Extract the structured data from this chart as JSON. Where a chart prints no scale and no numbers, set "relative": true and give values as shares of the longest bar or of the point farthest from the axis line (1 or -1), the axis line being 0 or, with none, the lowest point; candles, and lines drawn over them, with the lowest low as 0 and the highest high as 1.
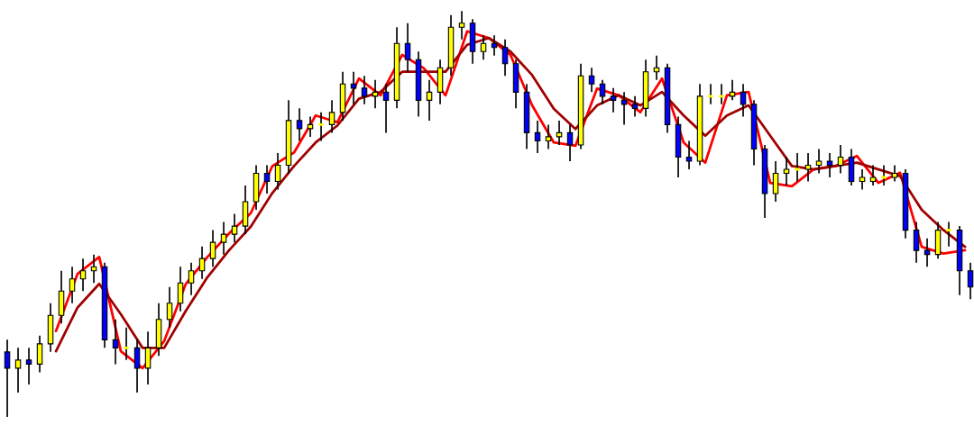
{
  "chart_data": [
    {
      "type": "candlestick",
      "relative": true,
      "categories": [
        null,
        null,
        null,
        null,
        null,
        null,
        null,
        null,
        null,
        null,
        null,
        null,
        null,
        null,
        null,
        null,
        null,
        null,
        null,
        null,
        null,
        null,
        null,
        null,
        null,
        null,
        null,
        null,
        null,
        null,
        null,
        null,
        null,
        null,
        null,
        null,
        null,
        null,
        null,
        null,
        null,
        null,
        null,
        null,
        null,
        null,
        null,
        null,
        null,
        null,
        null,
        null,
        null,
        null,
        null,
        null,
        null,
        null,
        null,
        null,
        null,
        null,
        null,
        null,
        null,
        null,
        null,
        null,
        null,
        null,
        null,
        null,
        null,
        null,
        null,
        null,
        null,
        null,
        null,
        null,
        null,
        null,
        null,
        null,
        null,
        null,
        null,
        null,
        null,
        null
      ],
      "ohlc": [
        [
          0.16,
          0.19,
          0,
          0.12
        ],
        [
          0.12,
          0.17,
          0.06,
          0.14
        ],
        [
          0.14,
          0.17,
          0.08,
          0.13
        ],
        [
          0.13,
          0.2,
          0.11,
          0.18
        ],
        [
          0.18,
          0.28,
          0.16,
          0.25
        ],
        [
          0.25,
          0.36,
          0.23,
          0.31
        ],
        [
          0.31,
          0.37,
          0.28,
          0.34
        ],
        [
          0.34,
          0.39,
          0.31,
          0.36
        ],
        [
          0.36,
          0.4,
          0.33,
          0.37
        ],
        [
          0.37,
          0.38,
          0.17,
          0.19
        ],
        [
          0.19,
          0.24,
          0.13,
          0.17
        ],
        [
          0.17,
          0.22,
          0.14,
          0.17
        ],
        [
          0.17,
          0.19,
          0.06,
          0.12
        ],
        [
          0.12,
          0.21,
          0.08,
          0.17
        ],
        [
          0.17,
          0.28,
          0.15,
          0.24
        ],
        [
          0.24,
          0.32,
          0.22,
          0.28
        ],
        [
          0.28,
          0.37,
          0.26,
          0.33
        ],
        [
          0.33,
          0.38,
          0.3,
          0.36
        ],
        [
          0.36,
          0.42,
          0.34,
          0.39
        ],
        [
          0.39,
          0.46,
          0.37,
          0.43
        ],
        [
          0.43,
          0.48,
          0.4,
          0.45
        ],
        [
          0.45,
          0.5,
          0.43,
          0.47
        ],
        [
          0.47,
          0.57,
          0.45,
          0.53
        ],
        [
          0.53,
          0.62,
          0.51,
          0.6
        ],
        [
          0.6,
          0.62,
          0.55,
          0.58
        ],
        [
          0.58,
          0.65,
          0.56,
          0.62
        ],
        [
          0.62,
          0.78,
          0.6,
          0.73
        ],
        [
          0.73,
          0.76,
          0.68,
          0.71
        ],
        [
          0.71,
          0.74,
          0.69,
          0.72
        ],
        [
          0.72,
          0.75,
          0.68,
          0.72
        ],
        [
          0.72,
          0.78,
          0.7,
          0.75
        ],
        [
          0.75,
          0.85,
          0.73,
          0.82
        ],
        [
          0.82,
          0.85,
          0.77,
          0.81
        ],
        [
          0.81,
          0.84,
          0.77,
          0.79
        ],
        [
          0.79,
          0.83,
          0.76,
          0.8
        ],
        [
          0.8,
          0.82,
          0.7,
          0.78
        ],
        [
          0.78,
          0.96,
          0.76,
          0.92
        ],
        [
          0.92,
          0.97,
          0.85,
          0.88
        ],
        [
          0.88,
          0.9,
          0.74,
          0.78
        ],
        [
          0.78,
          0.83,
          0.73,
          0.8
        ],
        [
          0.8,
          0.88,
          0.77,
          0.86
        ],
        [
          0.86,
          0.99,
          0.84,
          0.96
        ],
        [
          0.96,
          1.0,
          0.93,
          0.97
        ],
        [
          0.97,
          0.98,
          0.87,
          0.9
        ],
        [
          0.9,
          0.94,
          0.88,
          0.92
        ],
        [
          0.92,
          0.94,
          0.89,
          0.91
        ],
        [
          0.91,
          0.93,
          0.84,
          0.87
        ],
        [
          0.87,
          0.88,
          0.76,
          0.8
        ],
        [
          0.8,
          0.82,
          0.66,
          0.7
        ],
        [
          0.7,
          0.73,
          0.65,
          0.68
        ],
        [
          0.68,
          0.72,
          0.66,
          0.69
        ],
        [
          0.69,
          0.73,
          0.67,
          0.7
        ],
        [
          0.7,
          0.72,
          0.63,
          0.67
        ],
        [
          0.67,
          0.87,
          0.66,
          0.84
        ],
        [
          0.84,
          0.86,
          0.8,
          0.82
        ],
        [
          0.82,
          0.83,
          0.77,
          0.79
        ],
        [
          0.79,
          0.81,
          0.75,
          0.78
        ],
        [
          0.78,
          0.8,
          0.72,
          0.77
        ],
        [
          0.77,
          0.79,
          0.74,
          0.76
        ],
        [
          0.76,
          0.88,
          0.74,
          0.85
        ],
        [
          0.85,
          0.89,
          0.83,
          0.86
        ],
        [
          0.86,
          0.87,
          0.7,
          0.72
        ],
        [
          0.72,
          0.74,
          0.59,
          0.64
        ],
        [
          0.64,
          0.68,
          0.61,
          0.63
        ],
        [
          0.63,
          0.82,
          0.62,
          0.79
        ],
        [
          0.79,
          0.82,
          0.77,
          0.79
        ],
        [
          0.79,
          0.82,
          0.77,
          0.79
        ],
        [
          0.79,
          0.83,
          0.78,
          0.8
        ],
        [
          0.8,
          0.82,
          0.74,
          0.77
        ],
        [
          0.77,
          0.78,
          0.62,
          0.66
        ],
        [
          0.66,
          0.67,
          0.49,
          0.55
        ],
        [
          0.55,
          0.63,
          0.53,
          0.6
        ],
        [
          0.6,
          0.64,
          0.57,
          0.61
        ],
        [
          0.61,
          0.65,
          0.58,
          0.61
        ],
        [
          0.61,
          0.65,
          0.58,
          0.62
        ],
        [
          0.62,
          0.66,
          0.6,
          0.63
        ],
        [
          0.63,
          0.65,
          0.59,
          0.62
        ],
        [
          0.62,
          0.67,
          0.6,
          0.64
        ],
        [
          0.64,
          0.66,
          0.57,
          0.58
        ],
        [
          0.58,
          0.61,
          0.56,
          0.59
        ],
        [
          0.58,
          0.62,
          0.57,
          0.59
        ],
        [
          0.59,
          0.62,
          0.57,
          0.59
        ],
        [
          0.59,
          0.62,
          0.58,
          0.6
        ],
        [
          0.6,
          0.61,
          0.44,
          0.46
        ],
        [
          0.46,
          0.48,
          0.38,
          0.41
        ],
        [
          0.41,
          0.44,
          0.37,
          0.4
        ],
        [
          0.4,
          0.48,
          0.39,
          0.46
        ],
        [
          0.46,
          0.48,
          0.42,
          0.46
        ],
        [
          0.46,
          0.47,
          0.3,
          0.36
        ],
        [
          0.36,
          0.38,
          0.29,
          0.32
        ]
      ],
      "colors": [
        "#0000ff",
        "#ffff00",
        "#0000ff",
        "#ffff00",
        "#ffff00",
        "#ffff00",
        "#ffff00",
        "#ffff00",
        "#ffff00",
        "#0000ff",
        "#0000ff",
        "#ffff00",
        "#0000ff",
        "#ffff00",
        "#ffff00",
        "#ffff00",
        "#ffff00",
        "#ffff00",
        "#ffff00",
        "#ffff00",
        "#ffff00",
        "#ffff00",
        "#ffff00",
        "#ffff00",
        "#0000ff",
        "#ffff00",
        "#ffff00",
        "#0000ff",
        "#ffff00",
        "#ffff00",
        "#ffff00",
        "#ffff00",
        "#0000ff",
        "#0000ff",
        "#ffff00",
        "#0000ff",
        "#ffff00",
        "#0000ff",
        "#0000ff",
        "#ffff00",
        "#ffff00",
        "#ffff00",
        "#ffff00",
        "#0000ff",
        "#ffff00",
        "#0000ff",
        "#0000ff",
        "#0000ff",
        "#0000ff",
        "#0000ff",
        "#ffff00",
        "#ffff00",
        "#0000ff",
        "#ffff00",
        "#0000ff",
        "#0000ff",
        "#0000ff",
        "#0000ff",
        "#0000ff",
        "#ffff00",
        "#ffff00",
        "#0000ff",
        "#0000ff",
        "#0000ff",
        "#ffff00",
        "#ffff00",
        "#ffff00",
        "#ffff00",
        "#0000ff",
        "#0000ff",
        "#0000ff",
        "#ffff00",
        "#ffff00",
        "#ffff00",
        "#ffff00",
        "#ffff00",
        "#0000ff",
        "#ffff00",
        "#0000ff",
        "#ffff00",
        "#ffff00",
        "#ffff00",
        "#ffff00",
        "#0000ff",
        "#0000ff",
        "#0000ff",
        "#ffff00",
        "#ffff00",
        "#0000ff",
        "#0000ff"
      ]
    },
    {
      "type": "line",
      "relative": true,
      "categories": [
        null,
        null,
        null,
        null,
        null,
        null,
        null,
        null,
        null,
        null,
        null,
        null,
        null,
        null,
        null,
        null,
        null,
        null,
        null,
        null,
        null,
        null,
        null,
        null,
        null,
        null,
        null,
        null,
        null,
        null,
        null,
        null,
        null,
        null,
        null,
        null,
        null,
        null,
        null,
        null,
        null,
        null,
        null,
        null,
        null
      ],
      "series": [
        {
          "color": "#ff0000",
          "values": [
            null,
            null,
            0.11,
            0.28,
            0.33,
            0.05,
            0,
            0.08,
            0.25,
            0.33,
            0.4,
            0.46,
            0.6,
            0.64,
            0.75,
            0.73,
            0.86,
            0.81,
            0.93,
            0.89,
            0.81,
            1,
            0.98,
            0.93,
            0.78,
            0.67,
            0.66,
            0.83,
            0.81,
            0.76,
            0.86,
            0.67,
            0.61,
            0.81,
            0.82,
            0.55,
            0.54,
            0.59,
            0.6,
            0.63,
            0.55,
            0.58,
            0.36,
            0.34,
            0.35
          ]
        },
        {
          "color": "#a00000",
          "values": [
            null,
            null,
            0.05,
            0.18,
            0.25,
            0.16,
            0.06,
            0.06,
            0.17,
            0.27,
            0.35,
            0.42,
            0.52,
            0.6,
            0.67,
            0.72,
            0.8,
            0.82,
            0.88,
            0.88,
            0.88,
            0.96,
            0.98,
            0.94,
            0.87,
            0.77,
            0.71,
            0.78,
            0.81,
            0.78,
            0.82,
            0.75,
            0.69,
            0.75,
            0.78,
            0.69,
            0.6,
            0.59,
            0.6,
            0.61,
            0.59,
            0.57,
            0.47,
            0.41,
            0.36
          ]
        }
      ]
    }
  ]
}
